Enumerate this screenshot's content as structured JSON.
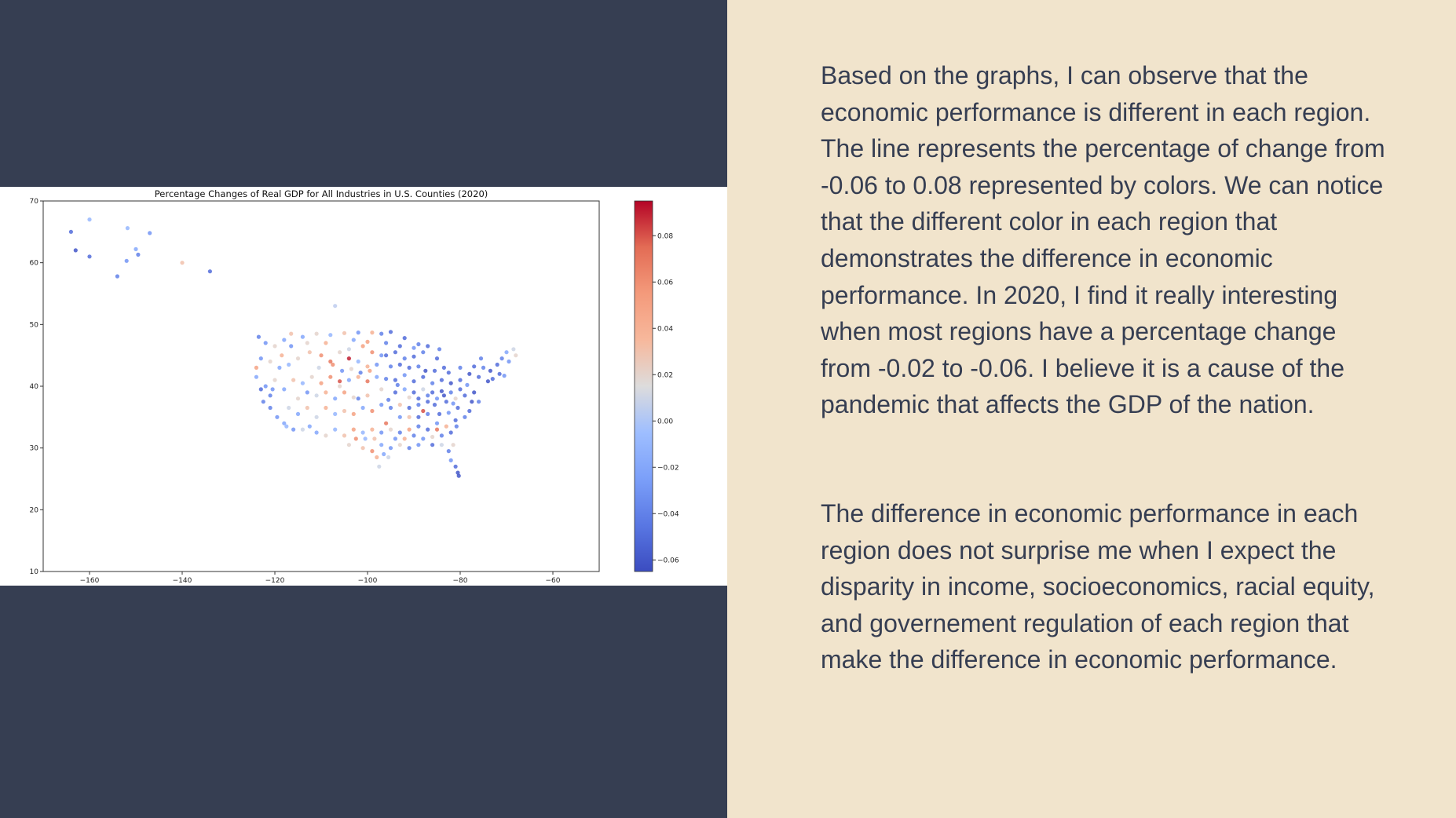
{
  "colors": {
    "navy_background": "#363e52",
    "cream_background": "#f1e4cc",
    "text": "#363e52",
    "colormap": "coolwarm"
  },
  "slide_text": {
    "paragraph_1": "Based on the graphs, I can observe that the economic performance is different in each region. The line represents the percentage of change from -0.06 to 0.08 represented by colors. We can notice that the different color in each region that demonstrates the difference in economic performance. In 2020, I find it really interesting when most regions have a percentage change from -0.02 to -0.06. I believe it is a cause of the pandemic that affects the GDP of the nation.",
    "paragraph_2": "The difference in economic performance in each region does not surprise me when I expect the disparity in income, socioeconomics, racial equity, and governement regulation of each region that make the difference in economic performance."
  },
  "chart_data": {
    "type": "scatter",
    "title": "Percentage Changes of Real GDP for All Industries in U.S. Counties (2020)",
    "xlabel": "",
    "ylabel": "",
    "xlim": [
      -170,
      -50
    ],
    "ylim": [
      10,
      70
    ],
    "xticks": [
      -160,
      -140,
      -120,
      -100,
      -80,
      -60
    ],
    "xtick_labels": [
      "−160",
      "−140",
      "−120",
      "−100",
      "−80",
      "−60"
    ],
    "yticks": [
      10,
      20,
      30,
      40,
      50,
      60,
      70
    ],
    "ytick_labels": [
      "10",
      "20",
      "30",
      "40",
      "50",
      "60",
      "70"
    ],
    "grid": false,
    "colorbar": {
      "colormap": "coolwarm",
      "vmin": -0.065,
      "vmax": 0.095,
      "ticks": [
        0.08,
        0.06,
        0.04,
        0.02,
        0.0,
        -0.02,
        -0.04,
        -0.06
      ],
      "tick_labels": [
        "0.08",
        "0.06",
        "0.04",
        "0.02",
        "0.00",
        "−0.02",
        "−0.04",
        "−0.06"
      ]
    },
    "points": [
      {
        "x": -164,
        "y": 65,
        "v": -0.05
      },
      {
        "x": -160,
        "y": 67,
        "v": -0.01
      },
      {
        "x": -163,
        "y": 62,
        "v": -0.06
      },
      {
        "x": -160,
        "y": 61,
        "v": -0.05
      },
      {
        "x": -154,
        "y": 57.8,
        "v": -0.04
      },
      {
        "x": -152,
        "y": 60.3,
        "v": -0.03
      },
      {
        "x": -151.8,
        "y": 65.6,
        "v": -0.01
      },
      {
        "x": -150,
        "y": 62.2,
        "v": -0.02
      },
      {
        "x": -149.5,
        "y": 61.3,
        "v": -0.04
      },
      {
        "x": -147,
        "y": 64.8,
        "v": -0.03
      },
      {
        "x": -140,
        "y": 60,
        "v": 0.03
      },
      {
        "x": -134,
        "y": 58.6,
        "v": -0.05
      },
      {
        "x": -107,
        "y": 53,
        "v": 0.005
      },
      {
        "x": -123.5,
        "y": 48,
        "v": -0.04
      },
      {
        "x": -122,
        "y": 47,
        "v": -0.03
      },
      {
        "x": -120,
        "y": 46.5,
        "v": 0.02
      },
      {
        "x": -118,
        "y": 47.5,
        "v": -0.02
      },
      {
        "x": -116.5,
        "y": 48.5,
        "v": 0.03
      },
      {
        "x": -114,
        "y": 48,
        "v": -0.02
      },
      {
        "x": -111,
        "y": 48.5,
        "v": 0.02
      },
      {
        "x": -108,
        "y": 48.3,
        "v": -0.01
      },
      {
        "x": -105,
        "y": 48.6,
        "v": 0.03
      },
      {
        "x": -102,
        "y": 48.7,
        "v": -0.03
      },
      {
        "x": -99,
        "y": 48.7,
        "v": 0.04
      },
      {
        "x": -97,
        "y": 48.5,
        "v": -0.04
      },
      {
        "x": -95,
        "y": 48.8,
        "v": -0.05
      },
      {
        "x": -92,
        "y": 47.8,
        "v": -0.05
      },
      {
        "x": -89,
        "y": 46.8,
        "v": -0.04
      },
      {
        "x": -124,
        "y": 43,
        "v": 0.05
      },
      {
        "x": -123,
        "y": 44.5,
        "v": -0.03
      },
      {
        "x": -121,
        "y": 44,
        "v": 0.02
      },
      {
        "x": -118.5,
        "y": 45,
        "v": 0.04
      },
      {
        "x": -117,
        "y": 43.5,
        "v": -0.01
      },
      {
        "x": -115,
        "y": 44.5,
        "v": 0.02
      },
      {
        "x": -112.5,
        "y": 45.5,
        "v": 0.03
      },
      {
        "x": -110,
        "y": 45,
        "v": 0.06
      },
      {
        "x": -108,
        "y": 44,
        "v": 0.07
      },
      {
        "x": -106,
        "y": 45.5,
        "v": 0.02
      },
      {
        "x": -104,
        "y": 46,
        "v": 0.01
      },
      {
        "x": -101,
        "y": 46.5,
        "v": 0.05
      },
      {
        "x": -99,
        "y": 45.5,
        "v": 0.06
      },
      {
        "x": -97,
        "y": 45,
        "v": -0.03
      },
      {
        "x": -94,
        "y": 45.5,
        "v": -0.05
      },
      {
        "x": -92,
        "y": 44.5,
        "v": -0.04
      },
      {
        "x": -90,
        "y": 44.8,
        "v": -0.05
      },
      {
        "x": -88,
        "y": 45.5,
        "v": -0.04
      },
      {
        "x": -85,
        "y": 44.5,
        "v": -0.05
      },
      {
        "x": -83.5,
        "y": 43,
        "v": -0.05
      },
      {
        "x": -122,
        "y": 40,
        "v": -0.03
      },
      {
        "x": -121,
        "y": 38.5,
        "v": -0.04
      },
      {
        "x": -120,
        "y": 41,
        "v": 0.02
      },
      {
        "x": -118,
        "y": 39.5,
        "v": -0.02
      },
      {
        "x": -116,
        "y": 41,
        "v": 0.03
      },
      {
        "x": -114,
        "y": 40.5,
        "v": -0.01
      },
      {
        "x": -112,
        "y": 41.5,
        "v": 0.02
      },
      {
        "x": -110,
        "y": 40.5,
        "v": 0.05
      },
      {
        "x": -108,
        "y": 41.5,
        "v": 0.06
      },
      {
        "x": -106,
        "y": 40,
        "v": 0.02
      },
      {
        "x": -104,
        "y": 41,
        "v": -0.02
      },
      {
        "x": -102,
        "y": 41.5,
        "v": 0.04
      },
      {
        "x": -100,
        "y": 40.8,
        "v": 0.07
      },
      {
        "x": -98,
        "y": 41.5,
        "v": -0.02
      },
      {
        "x": -96,
        "y": 41.2,
        "v": -0.04
      },
      {
        "x": -94,
        "y": 41,
        "v": -0.05
      },
      {
        "x": -92,
        "y": 41.8,
        "v": -0.03
      },
      {
        "x": -90,
        "y": 40.8,
        "v": -0.05
      },
      {
        "x": -88,
        "y": 41.5,
        "v": -0.05
      },
      {
        "x": -86,
        "y": 40.5,
        "v": -0.04
      },
      {
        "x": -84,
        "y": 41,
        "v": -0.05
      },
      {
        "x": -82,
        "y": 40.5,
        "v": -0.06
      },
      {
        "x": -80,
        "y": 41,
        "v": -0.05
      },
      {
        "x": -78,
        "y": 42,
        "v": -0.06
      },
      {
        "x": -76,
        "y": 41.5,
        "v": -0.05
      },
      {
        "x": -75,
        "y": 43,
        "v": -0.04
      },
      {
        "x": -73.5,
        "y": 42.5,
        "v": -0.06
      },
      {
        "x": -72,
        "y": 43.5,
        "v": -0.05
      },
      {
        "x": -71,
        "y": 44.5,
        "v": -0.04
      },
      {
        "x": -70,
        "y": 45.5,
        "v": -0.02
      },
      {
        "x": -68.5,
        "y": 46,
        "v": 0.01
      },
      {
        "x": -68,
        "y": 45,
        "v": 0.02
      },
      {
        "x": -69.5,
        "y": 44,
        "v": -0.03
      },
      {
        "x": -71.5,
        "y": 42,
        "v": -0.05
      },
      {
        "x": -74,
        "y": 40.8,
        "v": -0.06
      },
      {
        "x": -121,
        "y": 36.5,
        "v": -0.04
      },
      {
        "x": -119.5,
        "y": 35,
        "v": -0.03
      },
      {
        "x": -118,
        "y": 34,
        "v": -0.02
      },
      {
        "x": -117,
        "y": 36.5,
        "v": 0.01
      },
      {
        "x": -115,
        "y": 35.5,
        "v": -0.02
      },
      {
        "x": -113,
        "y": 36.5,
        "v": 0.03
      },
      {
        "x": -111,
        "y": 35,
        "v": 0.01
      },
      {
        "x": -109,
        "y": 36.5,
        "v": 0.04
      },
      {
        "x": -107,
        "y": 35.5,
        "v": -0.01
      },
      {
        "x": -105,
        "y": 36,
        "v": 0.03
      },
      {
        "x": -103,
        "y": 35.5,
        "v": 0.05
      },
      {
        "x": -101,
        "y": 36.5,
        "v": -0.02
      },
      {
        "x": -99,
        "y": 36,
        "v": 0.06
      },
      {
        "x": -97,
        "y": 37,
        "v": -0.03
      },
      {
        "x": -95,
        "y": 36.5,
        "v": -0.04
      },
      {
        "x": -93,
        "y": 37,
        "v": 0.03
      },
      {
        "x": -91,
        "y": 36.5,
        "v": -0.05
      },
      {
        "x": -89,
        "y": 37,
        "v": -0.04
      },
      {
        "x": -87,
        "y": 37.5,
        "v": -0.05
      },
      {
        "x": -85,
        "y": 38,
        "v": -0.03
      },
      {
        "x": -83,
        "y": 37.5,
        "v": -0.05
      },
      {
        "x": -81,
        "y": 38,
        "v": 0.02
      },
      {
        "x": -79,
        "y": 38.5,
        "v": -0.05
      },
      {
        "x": -77,
        "y": 39,
        "v": -0.06
      },
      {
        "x": -76,
        "y": 37.5,
        "v": -0.04
      },
      {
        "x": -111,
        "y": 32.5,
        "v": -0.02
      },
      {
        "x": -109,
        "y": 32,
        "v": 0.02
      },
      {
        "x": -107,
        "y": 33,
        "v": -0.01
      },
      {
        "x": -105,
        "y": 32,
        "v": 0.03
      },
      {
        "x": -103,
        "y": 33,
        "v": 0.05
      },
      {
        "x": -101,
        "y": 32.5,
        "v": -0.01
      },
      {
        "x": -99,
        "y": 33,
        "v": 0.04
      },
      {
        "x": -97,
        "y": 32.5,
        "v": -0.03
      },
      {
        "x": -95,
        "y": 33,
        "v": 0.02
      },
      {
        "x": -93,
        "y": 32.5,
        "v": -0.04
      },
      {
        "x": -91,
        "y": 33,
        "v": 0.05
      },
      {
        "x": -89,
        "y": 33.5,
        "v": -0.04
      },
      {
        "x": -87,
        "y": 33,
        "v": -0.05
      },
      {
        "x": -85,
        "y": 34,
        "v": -0.03
      },
      {
        "x": -83,
        "y": 33.5,
        "v": 0.04
      },
      {
        "x": -81,
        "y": 34.5,
        "v": -0.05
      },
      {
        "x": -79,
        "y": 35,
        "v": -0.04
      },
      {
        "x": -78,
        "y": 36,
        "v": -0.05
      },
      {
        "x": -101,
        "y": 30,
        "v": 0.03
      },
      {
        "x": -99,
        "y": 29.5,
        "v": 0.06
      },
      {
        "x": -97,
        "y": 30.5,
        "v": -0.02
      },
      {
        "x": -98,
        "y": 28.5,
        "v": 0.04
      },
      {
        "x": -97.5,
        "y": 27,
        "v": 0.01
      },
      {
        "x": -95,
        "y": 30,
        "v": -0.03
      },
      {
        "x": -93,
        "y": 30.5,
        "v": 0.02
      },
      {
        "x": -91,
        "y": 30,
        "v": -0.04
      },
      {
        "x": -89,
        "y": 30.5,
        "v": -0.03
      },
      {
        "x": -86,
        "y": 30.5,
        "v": -0.05
      },
      {
        "x": -84,
        "y": 30.5,
        "v": 0.01
      },
      {
        "x": -82.5,
        "y": 29.5,
        "v": -0.04
      },
      {
        "x": -82,
        "y": 28,
        "v": -0.03
      },
      {
        "x": -81,
        "y": 27,
        "v": -0.05
      },
      {
        "x": -80.5,
        "y": 26,
        "v": -0.06
      },
      {
        "x": -80.3,
        "y": 25.5,
        "v": -0.06
      },
      {
        "x": -81.5,
        "y": 30.5,
        "v": 0.02
      },
      {
        "x": -85,
        "y": 33,
        "v": 0.07
      },
      {
        "x": -88,
        "y": 36,
        "v": 0.08
      },
      {
        "x": -104,
        "y": 44.5,
        "v": 0.09
      },
      {
        "x": -106,
        "y": 40.8,
        "v": 0.08
      },
      {
        "x": -96,
        "y": 34,
        "v": 0.07
      },
      {
        "x": -100,
        "y": 38.5,
        "v": 0.03
      },
      {
        "x": -102,
        "y": 38,
        "v": -0.04
      },
      {
        "x": -94,
        "y": 39,
        "v": -0.05
      },
      {
        "x": -92,
        "y": 39.5,
        "v": -0.02
      },
      {
        "x": -90,
        "y": 39,
        "v": -0.05
      },
      {
        "x": -88,
        "y": 39.5,
        "v": 0.01
      },
      {
        "x": -86,
        "y": 39,
        "v": -0.05
      },
      {
        "x": -84,
        "y": 39.2,
        "v": -0.06
      },
      {
        "x": -82,
        "y": 39,
        "v": -0.04
      },
      {
        "x": -80,
        "y": 39.5,
        "v": -0.05
      },
      {
        "x": -78.5,
        "y": 40.2,
        "v": -0.03
      },
      {
        "x": -115,
        "y": 38,
        "v": 0.02
      },
      {
        "x": -113,
        "y": 39,
        "v": -0.03
      },
      {
        "x": -111,
        "y": 38.5,
        "v": 0.01
      },
      {
        "x": -109,
        "y": 39,
        "v": 0.04
      },
      {
        "x": -107,
        "y": 38,
        "v": -0.02
      },
      {
        "x": -105,
        "y": 39,
        "v": 0.05
      },
      {
        "x": -103,
        "y": 38.2,
        "v": 0.02
      },
      {
        "x": -119,
        "y": 43,
        "v": -0.02
      },
      {
        "x": -116.5,
        "y": 46.5,
        "v": -0.03
      },
      {
        "x": -113,
        "y": 47,
        "v": 0.02
      },
      {
        "x": -109,
        "y": 47,
        "v": 0.04
      },
      {
        "x": -103,
        "y": 47.5,
        "v": -0.02
      },
      {
        "x": -100,
        "y": 47.2,
        "v": 0.05
      },
      {
        "x": -96,
        "y": 47,
        "v": -0.04
      },
      {
        "x": -93,
        "y": 46.5,
        "v": -0.05
      },
      {
        "x": -90,
        "y": 46.2,
        "v": -0.03
      },
      {
        "x": -87,
        "y": 46.5,
        "v": -0.05
      },
      {
        "x": -84.5,
        "y": 46,
        "v": -0.04
      },
      {
        "x": -124,
        "y": 41.5,
        "v": -0.02
      },
      {
        "x": -123,
        "y": 39.5,
        "v": -0.05
      },
      {
        "x": -122.5,
        "y": 37.5,
        "v": -0.04
      },
      {
        "x": -120.5,
        "y": 39.5,
        "v": -0.03
      },
      {
        "x": -117.5,
        "y": 33.5,
        "v": -0.01
      },
      {
        "x": -116,
        "y": 33,
        "v": -0.03
      },
      {
        "x": -114,
        "y": 33,
        "v": 0.01
      },
      {
        "x": -112.5,
        "y": 33.5,
        "v": -0.02
      },
      {
        "x": -96,
        "y": 45,
        "v": -0.05
      },
      {
        "x": -91,
        "y": 43,
        "v": -0.05
      },
      {
        "x": -89,
        "y": 43.2,
        "v": -0.04
      },
      {
        "x": -87.5,
        "y": 42.5,
        "v": -0.06
      },
      {
        "x": -85.5,
        "y": 42.5,
        "v": -0.05
      },
      {
        "x": -82.5,
        "y": 42.2,
        "v": -0.05
      },
      {
        "x": -80,
        "y": 43,
        "v": -0.04
      },
      {
        "x": -77,
        "y": 43.2,
        "v": -0.05
      },
      {
        "x": -75.5,
        "y": 44.5,
        "v": -0.04
      },
      {
        "x": -73,
        "y": 41.2,
        "v": -0.05
      },
      {
        "x": -70.5,
        "y": 41.7,
        "v": -0.03
      },
      {
        "x": -98,
        "y": 43.5,
        "v": -0.03
      },
      {
        "x": -100,
        "y": 43.2,
        "v": 0.04
      },
      {
        "x": -102,
        "y": 44,
        "v": -0.01
      },
      {
        "x": -97,
        "y": 39.5,
        "v": 0.02
      },
      {
        "x": -95.5,
        "y": 37.8,
        "v": -0.04
      },
      {
        "x": -93,
        "y": 35,
        "v": -0.03
      },
      {
        "x": -91,
        "y": 35,
        "v": 0.03
      },
      {
        "x": -89,
        "y": 35,
        "v": -0.05
      },
      {
        "x": -87,
        "y": 35.5,
        "v": -0.04
      },
      {
        "x": -84.5,
        "y": 35.5,
        "v": -0.05
      },
      {
        "x": -82.5,
        "y": 35.7,
        "v": -0.03
      },
      {
        "x": -80.5,
        "y": 36.5,
        "v": -0.05
      },
      {
        "x": -77.5,
        "y": 37.5,
        "v": -0.06
      },
      {
        "x": -94,
        "y": 31.5,
        "v": -0.03
      },
      {
        "x": -92,
        "y": 31.5,
        "v": 0.04
      },
      {
        "x": -90,
        "y": 32,
        "v": -0.04
      },
      {
        "x": -88,
        "y": 31.5,
        "v": -0.03
      },
      {
        "x": -86,
        "y": 31.8,
        "v": 0.02
      },
      {
        "x": -84,
        "y": 32,
        "v": -0.04
      },
      {
        "x": -82,
        "y": 32.5,
        "v": -0.05
      },
      {
        "x": -80.8,
        "y": 33.5,
        "v": -0.04
      },
      {
        "x": -104,
        "y": 30.5,
        "v": 0.02
      },
      {
        "x": -102.5,
        "y": 31.5,
        "v": 0.06
      },
      {
        "x": -100.5,
        "y": 31.5,
        "v": -0.01
      },
      {
        "x": -98.5,
        "y": 31.5,
        "v": 0.03
      },
      {
        "x": -96.5,
        "y": 29,
        "v": -0.02
      },
      {
        "x": -95.5,
        "y": 28.5,
        "v": 0.01
      },
      {
        "x": -110.5,
        "y": 43,
        "v": 0.01
      },
      {
        "x": -107.5,
        "y": 43.5,
        "v": 0.06
      },
      {
        "x": -105.5,
        "y": 42.5,
        "v": -0.03
      },
      {
        "x": -103.5,
        "y": 42.8,
        "v": 0.02
      },
      {
        "x": -101.5,
        "y": 42.2,
        "v": -0.04
      },
      {
        "x": -99.5,
        "y": 42.5,
        "v": 0.05
      },
      {
        "x": -95,
        "y": 43.2,
        "v": -0.04
      },
      {
        "x": -93,
        "y": 43.5,
        "v": -0.05
      },
      {
        "x": -93.5,
        "y": 40.2,
        "v": -0.04
      },
      {
        "x": -91,
        "y": 38.2,
        "v": 0.02
      },
      {
        "x": -89,
        "y": 38,
        "v": -0.05
      },
      {
        "x": -87,
        "y": 38.5,
        "v": -0.04
      },
      {
        "x": -85.5,
        "y": 37,
        "v": -0.05
      },
      {
        "x": -83.5,
        "y": 38.5,
        "v": -0.06
      },
      {
        "x": -81.5,
        "y": 37.2,
        "v": -0.03
      }
    ]
  }
}
